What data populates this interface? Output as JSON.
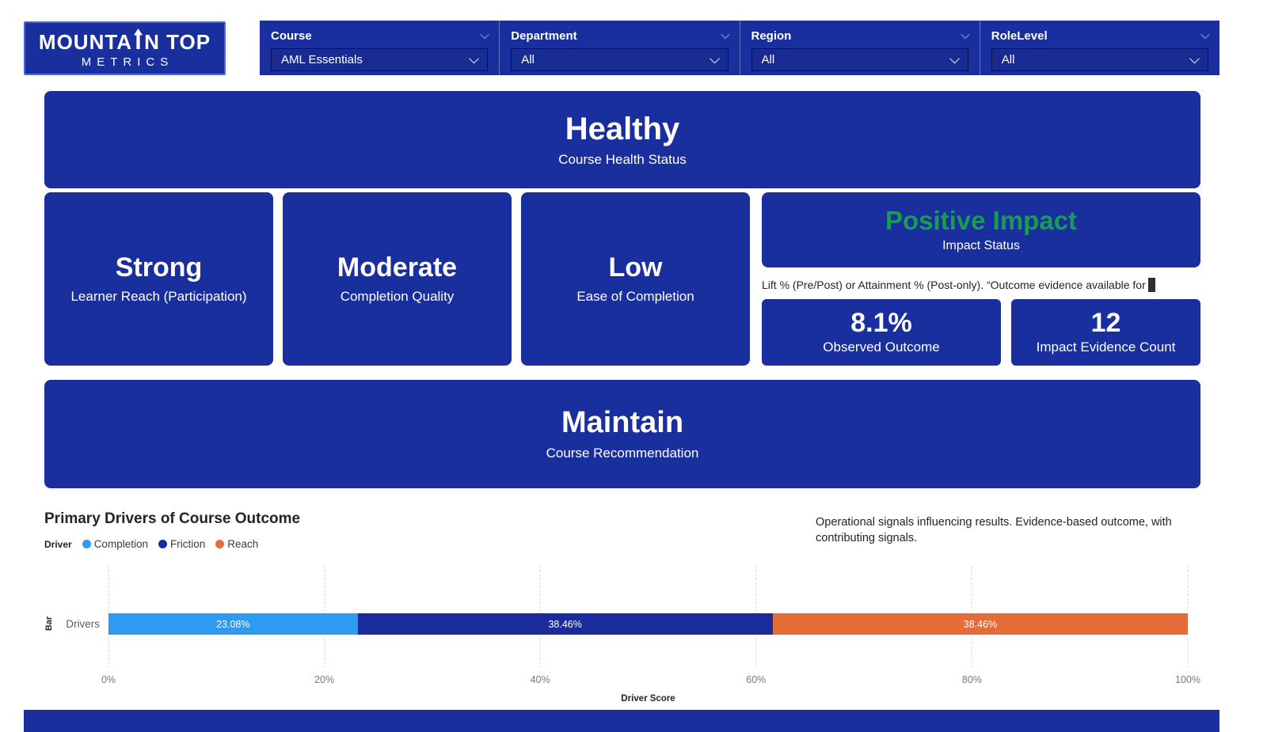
{
  "colors": {
    "navy": "#1A2F9E",
    "green": "#189B55",
    "completion_blue": "#2D9BF2",
    "friction_navy": "#1A2C9B",
    "reach_orange": "#E66C37"
  },
  "logo": {
    "part1": "MOUNTA",
    "part2": "N TOP",
    "line2": "METRICS"
  },
  "filters": [
    {
      "label": "Course",
      "value": "AML Essentials"
    },
    {
      "label": "Department",
      "value": "All"
    },
    {
      "label": "Region",
      "value": "All"
    },
    {
      "label": "RoleLevel",
      "value": "All"
    }
  ],
  "cards": {
    "health": {
      "value": "Healthy",
      "label": "Course Health Status"
    },
    "reach": {
      "value": "Strong",
      "label": "Learner Reach (Participation)"
    },
    "quality": {
      "value": "Moderate",
      "label": "Completion Quality"
    },
    "ease": {
      "value": "Low",
      "label": "Ease of Completion"
    },
    "impact": {
      "value": "Positive Impact",
      "label": "Impact Status"
    },
    "impact_note": "Lift % (Pre/Post) or Attainment % (Post-only). “Outcome evidence available for",
    "observed": {
      "value": "8.1%",
      "label": "Observed Outcome"
    },
    "evidence": {
      "value": "12",
      "label": "Impact Evidence Count"
    },
    "recommendation": {
      "value": "Maintain",
      "label": "Course Recommendation"
    }
  },
  "chart_caption": "Operational signals influencing results. Evidence-based outcome, with contributing signals.",
  "chart_data": {
    "type": "bar",
    "orientation": "horizontal",
    "stacked": true,
    "title": "Primary Drivers of Course Outcome",
    "categories": [
      "Drivers"
    ],
    "series": [
      {
        "name": "Completion",
        "values": [
          23.08
        ],
        "color": "#2D9BF2"
      },
      {
        "name": "Friction",
        "values": [
          38.46
        ],
        "color": "#1A2C9B"
      },
      {
        "name": "Reach",
        "values": [
          38.46
        ],
        "color": "#E66C37"
      }
    ],
    "data_labels": [
      "23.08%",
      "38.46%",
      "38.46%"
    ],
    "legend_title": "Driver",
    "legend_position": "top-left",
    "xlabel": "Driver Score",
    "ylabel": "Bar",
    "xlim": [
      0,
      100
    ],
    "x_ticks": [
      "0%",
      "20%",
      "40%",
      "60%",
      "80%",
      "100%"
    ],
    "grid": "vertical-dashed"
  }
}
